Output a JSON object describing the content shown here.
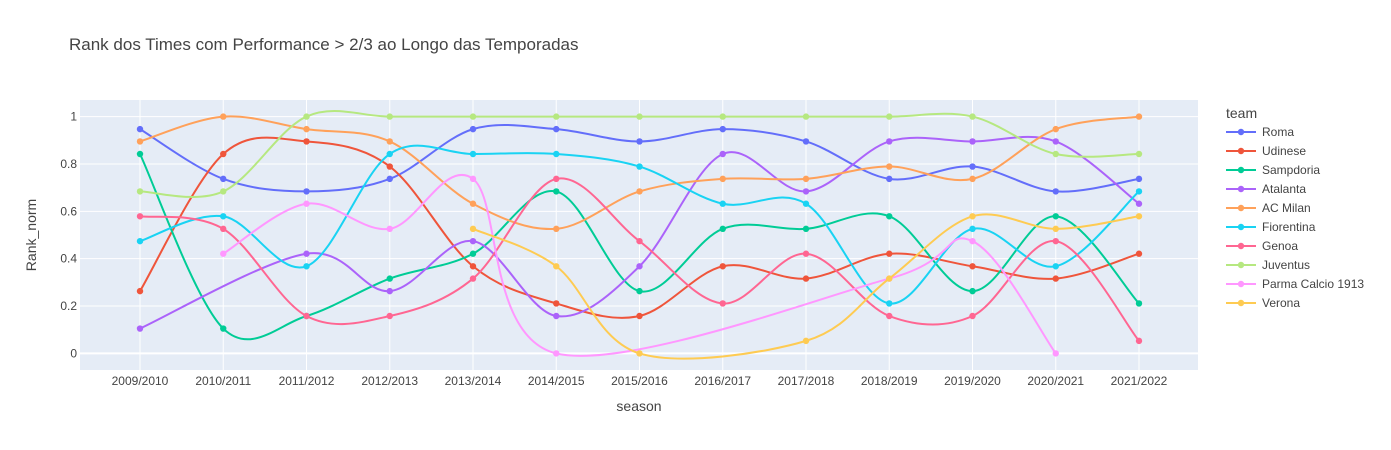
{
  "chart_data": {
    "type": "line",
    "title": "Rank dos Times com Performance > 2/3 ao Longo das Temporadas",
    "xlabel": "season",
    "ylabel": "Rank_norm",
    "ylim": [
      -0.07,
      1.07
    ],
    "yticks": [
      "0",
      "0.2",
      "0.4",
      "0.6",
      "0.8",
      "1"
    ],
    "categories": [
      "2009/2010",
      "2010/2011",
      "2011/2012",
      "2012/2013",
      "2013/2014",
      "2014/2015",
      "2015/2016",
      "2016/2017",
      "2017/2018",
      "2018/2019",
      "2019/2020",
      "2020/2021",
      "2021/2022"
    ],
    "grid": true,
    "line_shape": "spline",
    "legend": {
      "title": "team",
      "position": "right"
    },
    "series": [
      {
        "name": "Roma",
        "color": "#636efa",
        "values": [
          0.947,
          0.737,
          0.684,
          0.737,
          0.947,
          0.947,
          0.895,
          0.947,
          0.895,
          0.737,
          0.789,
          0.684,
          0.737
        ]
      },
      {
        "name": "Udinese",
        "color": "#EF553B",
        "values": [
          0.263,
          0.842,
          0.895,
          0.789,
          0.368,
          0.211,
          0.158,
          0.368,
          0.316,
          0.421,
          0.368,
          0.316,
          0.421
        ]
      },
      {
        "name": "Sampdoria",
        "color": "#00cc96",
        "values": [
          0.842,
          0.105,
          0.158,
          0.316,
          0.421,
          0.684,
          0.263,
          0.526,
          0.526,
          0.579,
          0.263,
          0.579,
          0.211
        ]
      },
      {
        "name": "Atalanta",
        "color": "#ab63fa",
        "values": [
          0.105,
          null,
          0.421,
          0.263,
          0.474,
          0.158,
          0.368,
          0.842,
          0.684,
          0.895,
          0.895,
          0.895,
          0.632
        ]
      },
      {
        "name": "AC Milan",
        "color": "#FFA15A",
        "values": [
          0.895,
          1.0,
          0.947,
          0.895,
          0.632,
          0.526,
          0.684,
          0.737,
          0.737,
          0.789,
          0.737,
          0.947,
          1.0
        ]
      },
      {
        "name": "Fiorentina",
        "color": "#19d3f3",
        "values": [
          0.474,
          0.579,
          0.368,
          0.842,
          0.842,
          0.842,
          0.789,
          0.632,
          0.632,
          0.211,
          0.526,
          0.368,
          0.684
        ]
      },
      {
        "name": "Genoa",
        "color": "#FF6692",
        "values": [
          0.579,
          0.526,
          0.158,
          0.158,
          0.316,
          0.737,
          0.474,
          0.211,
          0.421,
          0.158,
          0.158,
          0.474,
          0.053
        ]
      },
      {
        "name": "Juventus",
        "color": "#B6E880",
        "values": [
          0.684,
          0.684,
          1.0,
          1.0,
          1.0,
          1.0,
          1.0,
          1.0,
          1.0,
          1.0,
          1.0,
          0.842,
          0.842
        ]
      },
      {
        "name": "Parma Calcio 1913",
        "color": "#FF97FF",
        "values": [
          null,
          0.421,
          0.632,
          0.526,
          0.737,
          0.0,
          null,
          null,
          null,
          0.316,
          0.474,
          0.0,
          null
        ]
      },
      {
        "name": "Verona",
        "color": "#FECB52",
        "values": [
          null,
          null,
          null,
          null,
          0.526,
          0.368,
          0.0,
          null,
          0.053,
          0.316,
          0.579,
          0.526,
          0.579
        ]
      }
    ]
  }
}
